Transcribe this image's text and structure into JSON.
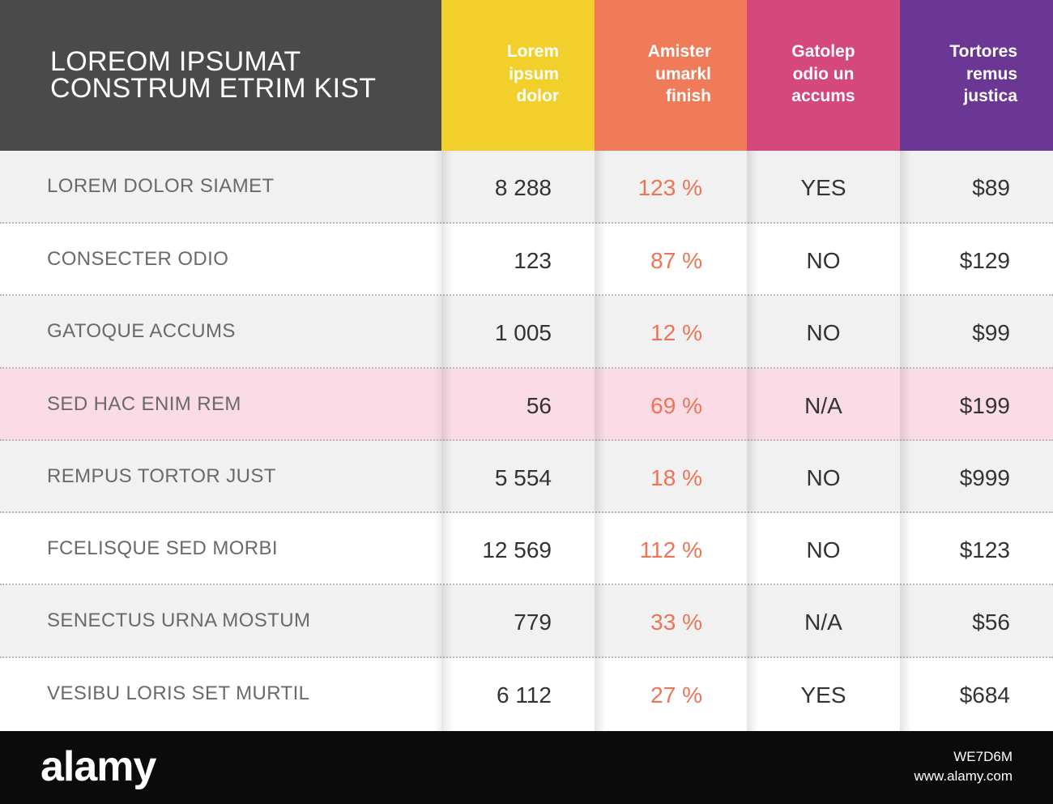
{
  "title": "LOREOM IPSUMAT\nCONSTRUM ETRIM KIST",
  "columns": [
    {
      "lines": [
        "Lorem",
        "ipsum",
        "dolor"
      ],
      "color": "#f3cf2b"
    },
    {
      "lines": [
        "Amister",
        "umarkl",
        "finish"
      ],
      "color": "#f07b58"
    },
    {
      "lines": [
        "Gatolep",
        "odio un",
        "accums"
      ],
      "color": "#d5487b"
    },
    {
      "lines": [
        "Tortores",
        "remus",
        "justica"
      ],
      "color": "#6a3795"
    }
  ],
  "rows": [
    {
      "label": "LOREM DOLOR SIAMET",
      "values": [
        "8 288",
        "123 %",
        "YES",
        "$89"
      ],
      "band": "grey"
    },
    {
      "label": "CONSECTER ODIO",
      "values": [
        "123",
        "87 %",
        "NO",
        "$129"
      ],
      "band": "white"
    },
    {
      "label": "GATOQUE ACCUMS",
      "values": [
        "1 005",
        "12 %",
        "NO",
        "$99"
      ],
      "band": "grey"
    },
    {
      "label": "SED HAC ENIM REM",
      "values": [
        "56",
        "69 %",
        "N/A",
        "$199"
      ],
      "band": "pink"
    },
    {
      "label": "REMPUS TORTOR JUST",
      "values": [
        "5 554",
        "18 %",
        "NO",
        "$999"
      ],
      "band": "grey"
    },
    {
      "label": "FCELISQUE SED MORBI",
      "values": [
        "12 569",
        "112 %",
        "NO",
        "$123"
      ],
      "band": "white"
    },
    {
      "label": "SENECTUS URNA MOSTUM",
      "values": [
        "779",
        "33 %",
        "N/A",
        "$56"
      ],
      "band": "grey"
    },
    {
      "label": "VESIBU LORIS SET MURTIL",
      "values": [
        "6 112",
        "27 %",
        "YES",
        "$684"
      ],
      "band": "white"
    }
  ],
  "footer": {
    "logo": "alamy",
    "image_id": "WE7D6M",
    "site": "www.alamy.com"
  }
}
